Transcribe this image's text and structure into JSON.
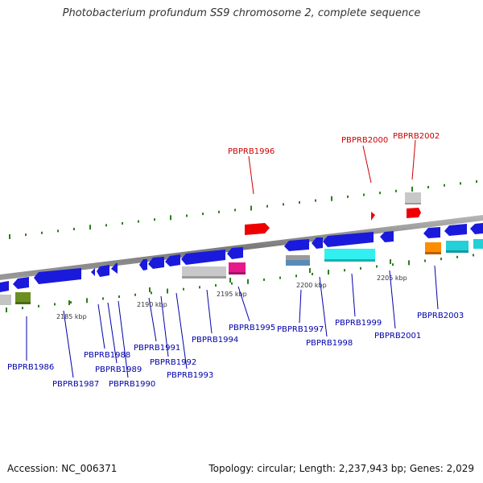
{
  "title": "Photobacterium profundum SS9 chromosome 2, complete sequence",
  "footer": {
    "accession": "Accession: NC_006371",
    "stats": "Topology: circular; Length: 2,237,943 bp; Genes: 2,029"
  },
  "scale_labels": [
    "2185 kbp",
    "2190 kbp",
    "2195 kbp",
    "2200 kbp",
    "2205 kbp"
  ],
  "colors": {
    "forward_label": "#cc0000",
    "reverse_label": "#0000aa",
    "backbone": "#8c8c8c"
  },
  "labels_forward": [
    "PBPRB1996",
    "PBPRB2000",
    "PBPRB2002"
  ],
  "labels_reverse": [
    "PBPRB1986",
    "PBPRB1987",
    "PBPRB1988",
    "PBPRB1989",
    "PBPRB1990",
    "PBPRB1991",
    "PBPRB1992",
    "PBPRB1993",
    "PBPRB1994",
    "PBPRB1995",
    "PBPRB1997",
    "PBPRB1998",
    "PBPRB1999",
    "PBPRB2001",
    "PBPRB2003"
  ]
}
